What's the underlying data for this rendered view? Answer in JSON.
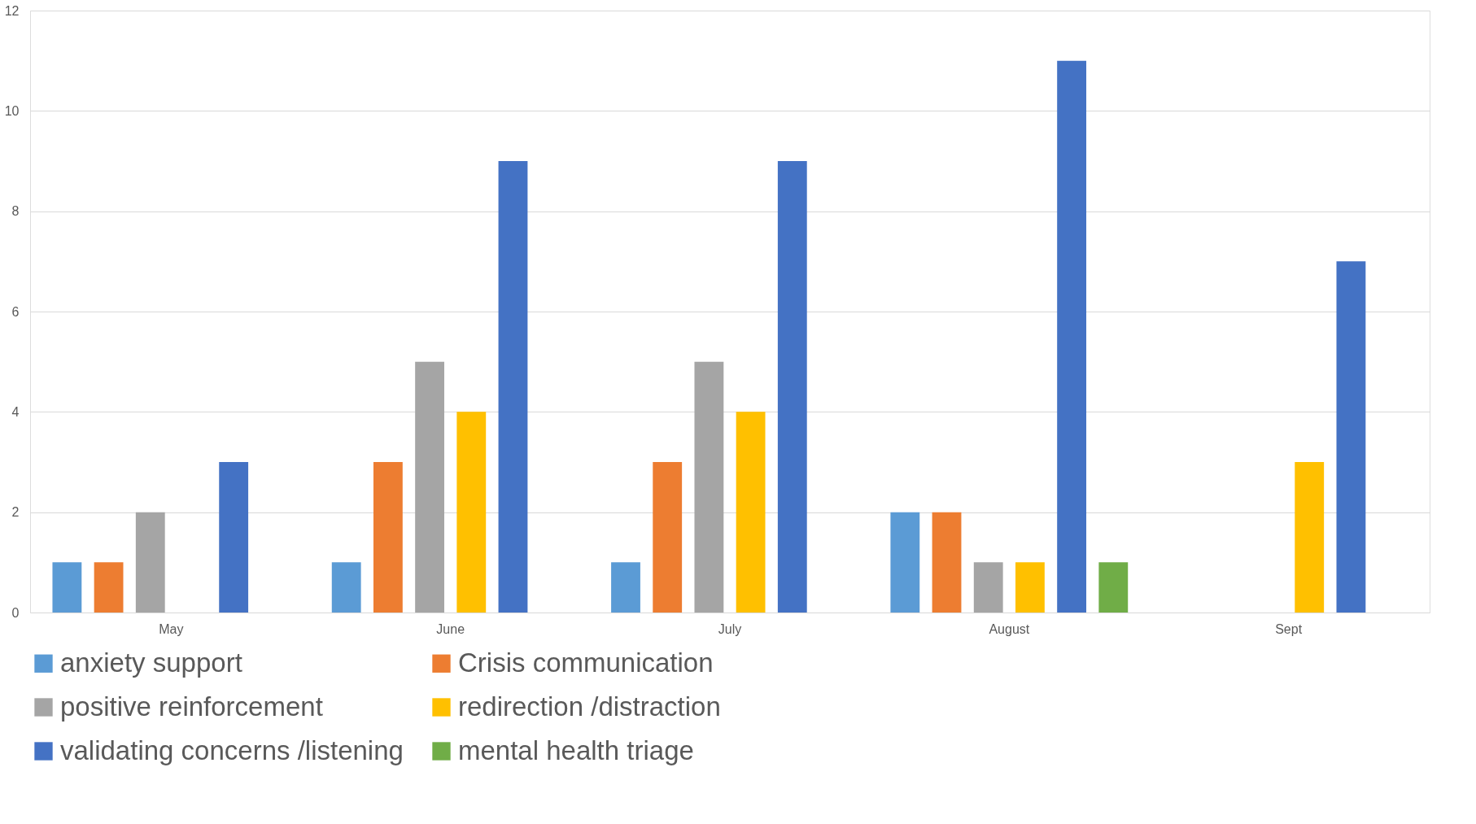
{
  "chart_data": {
    "type": "bar",
    "categories": [
      "May",
      "June",
      "July",
      "August",
      "Sept"
    ],
    "series": [
      {
        "name": "anxiety support",
        "color": "#5b9bd5",
        "values": [
          1,
          1,
          1,
          2,
          null
        ]
      },
      {
        "name": "Crisis communication",
        "color": "#ed7d31",
        "values": [
          1,
          3,
          3,
          2,
          null
        ]
      },
      {
        "name": "positive reinforcement",
        "color": "#a5a5a5",
        "values": [
          2,
          5,
          5,
          1,
          null
        ]
      },
      {
        "name": "redirection /distraction",
        "color": "#ffc000",
        "values": [
          null,
          4,
          4,
          1,
          3
        ]
      },
      {
        "name": "validating concerns /listening",
        "color": "#4472c4",
        "values": [
          3,
          9,
          9,
          11,
          7
        ]
      },
      {
        "name": "mental health triage",
        "color": "#70ad47",
        "values": [
          null,
          null,
          null,
          1,
          null
        ]
      }
    ],
    "ylim": [
      0,
      12
    ],
    "yticks": [
      0,
      2,
      4,
      6,
      8,
      10,
      12
    ],
    "grid": "y",
    "legend": "bottom"
  }
}
